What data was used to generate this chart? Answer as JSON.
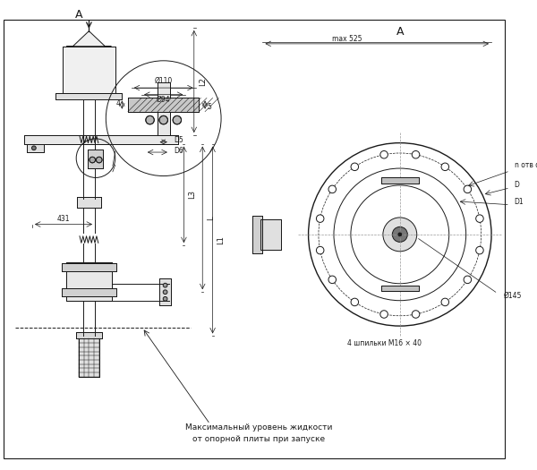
{
  "bg_color": "#ffffff",
  "line_color": "#1a1a1a",
  "fig_width": 6.0,
  "fig_height": 5.25,
  "dpi": 100,
  "annotations": {
    "section_label_left": "A",
    "section_label_right": "A",
    "dim_phi110": "Ø110",
    "dim_phi94": "Ø94",
    "dim_d5": "D5",
    "dim_d6": "D6",
    "dim_4": "4",
    "dim_5": "5",
    "dim_431": "431",
    "dim_L": "L",
    "dim_L1": "L1",
    "dim_L2": "L2",
    "dim_L3": "L3",
    "dim_max525": "max 525",
    "dim_phi145": "Ø145",
    "dim_n_otv_d": "n отв d",
    "dim_D": "D",
    "dim_D1": "D1",
    "text_studs": "4 шпильки M16 × 40",
    "text_level1": "Максимальный уровень жидкости",
    "text_level2": "от опорной плиты при запуске"
  }
}
